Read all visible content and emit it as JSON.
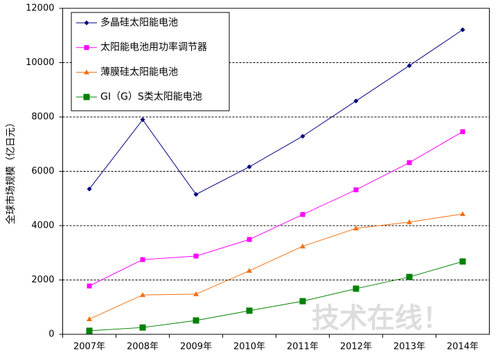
{
  "chart_data": {
    "type": "line",
    "y_label": "全球市场规模（亿日元）",
    "categories": [
      "2007年",
      "2008年",
      "2009年",
      "2010年",
      "2011年",
      "2012年",
      "2013年",
      "2014年"
    ],
    "series": [
      {
        "name": "多晶硅太阳能电池",
        "color": "#000080",
        "marker": "diamond",
        "values": [
          5350,
          7900,
          5150,
          6165,
          7290,
          8590,
          9890,
          11210
        ]
      },
      {
        "name": "太阳能电池用功率调节器",
        "color": "#ff00ff",
        "marker": "square",
        "values": [
          1780,
          2750,
          2880,
          3490,
          4410,
          5320,
          6320,
          7460
        ]
      },
      {
        "name": "薄膜硅太阳能电池",
        "color": "#f07010",
        "marker": "triangle",
        "values": [
          560,
          1450,
          1480,
          2340,
          3240,
          3900,
          4130,
          4430
        ]
      },
      {
        "name": "GI（G）S类太阳能电池",
        "color": "#008000",
        "marker": "bigsquare",
        "values": [
          130,
          250,
          510,
          870,
          1220,
          1680,
          2110,
          2680
        ]
      }
    ],
    "ylim": [
      0,
      12000
    ],
    "yticks": [
      0,
      2000,
      4000,
      6000,
      8000,
      10000,
      12000
    ],
    "grid": true,
    "legend": "top-left",
    "watermark": "技术在线！"
  }
}
